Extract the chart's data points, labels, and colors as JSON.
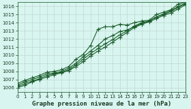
{
  "title": "Graphe pression niveau de la mer (hPa)",
  "bg_color": "#d8f5f0",
  "grid_color": "#c0d8d0",
  "line_color": "#1a5c2a",
  "x_values": [
    0,
    1,
    2,
    3,
    4,
    5,
    6,
    7,
    8,
    9,
    10,
    11,
    12,
    13,
    14,
    15,
    16,
    17,
    18,
    19,
    20,
    21,
    22,
    23
  ],
  "series": [
    [
      1006.5,
      1006.9,
      1007.2,
      1007.5,
      1007.9,
      1008.0,
      1008.2,
      1008.6,
      1009.5,
      1010.1,
      1011.2,
      1013.2,
      1013.5,
      1013.5,
      1013.8,
      1013.7,
      1014.0,
      1014.2,
      1014.3,
      1015.0,
      1015.3,
      1015.6,
      1016.3,
      1016.5
    ],
    [
      1006.3,
      1006.7,
      1007.0,
      1007.3,
      1007.7,
      1007.8,
      1008.0,
      1008.4,
      1009.0,
      1009.8,
      1010.5,
      1011.2,
      1012.0,
      1012.4,
      1012.9,
      1013.1,
      1013.5,
      1013.9,
      1014.2,
      1014.7,
      1015.1,
      1015.5,
      1016.0,
      1016.4
    ],
    [
      1006.1,
      1006.5,
      1006.8,
      1007.1,
      1007.5,
      1007.7,
      1007.9,
      1008.2,
      1008.8,
      1009.5,
      1010.2,
      1010.8,
      1011.4,
      1011.9,
      1012.5,
      1013.0,
      1013.6,
      1014.0,
      1014.2,
      1014.7,
      1015.0,
      1015.4,
      1015.9,
      1016.3
    ],
    [
      1006.0,
      1006.3,
      1006.7,
      1007.0,
      1007.3,
      1007.6,
      1007.8,
      1008.1,
      1008.6,
      1009.2,
      1009.9,
      1010.5,
      1011.0,
      1011.6,
      1012.2,
      1012.8,
      1013.4,
      1013.8,
      1014.1,
      1014.5,
      1014.9,
      1015.2,
      1015.7,
      1016.2
    ]
  ],
  "ylim": [
    1005.5,
    1016.5
  ],
  "yticks": [
    1006,
    1007,
    1008,
    1009,
    1010,
    1011,
    1012,
    1013,
    1014,
    1015,
    1016
  ],
  "xlim": [
    0,
    23
  ],
  "xticks": [
    0,
    1,
    2,
    3,
    4,
    5,
    6,
    7,
    8,
    9,
    10,
    11,
    12,
    13,
    14,
    15,
    16,
    17,
    18,
    19,
    20,
    21,
    22,
    23
  ],
  "marker": "+",
  "marker_size": 4.0,
  "line_width": 0.8,
  "title_fontsize": 6.5,
  "tick_fontsize": 5.0,
  "figsize": [
    2.8,
    1.6
  ],
  "dpi": 100
}
